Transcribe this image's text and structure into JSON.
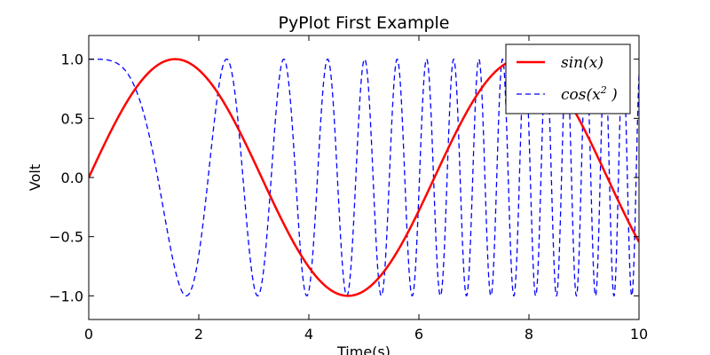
{
  "chart_data": {
    "type": "line",
    "title": "PyPlot First Example",
    "xlabel": "Time(s)",
    "ylabel": "Volt",
    "xlim": [
      0,
      10
    ],
    "ylim": [
      -1.2,
      1.2
    ],
    "xticks": [
      0,
      2,
      4,
      6,
      8,
      10
    ],
    "xtick_labels": [
      "0",
      "2",
      "4",
      "6",
      "8",
      "10"
    ],
    "yticks": [
      1.0,
      0.5,
      0.0,
      -0.5,
      -1.0
    ],
    "ytick_labels": [
      "1.0",
      "0.5",
      "0.0",
      "−0.5",
      "−1.0"
    ],
    "grid": false,
    "legend_position": "top-right",
    "series": [
      {
        "name": "sin(x)",
        "function": "sin(x)",
        "color": "#ff0000",
        "line_style": "solid"
      },
      {
        "name": "cos(x²)",
        "function": "cos(x^2)",
        "color": "#0000ff",
        "line_style": "dashed"
      }
    ],
    "legend": [
      {
        "label": "sin(x)",
        "label_main": "sin(x)",
        "label_sup": ""
      },
      {
        "label": "cos(x²)",
        "label_main": "cos(x",
        "label_sup": "2",
        "label_tail": " )"
      }
    ]
  }
}
